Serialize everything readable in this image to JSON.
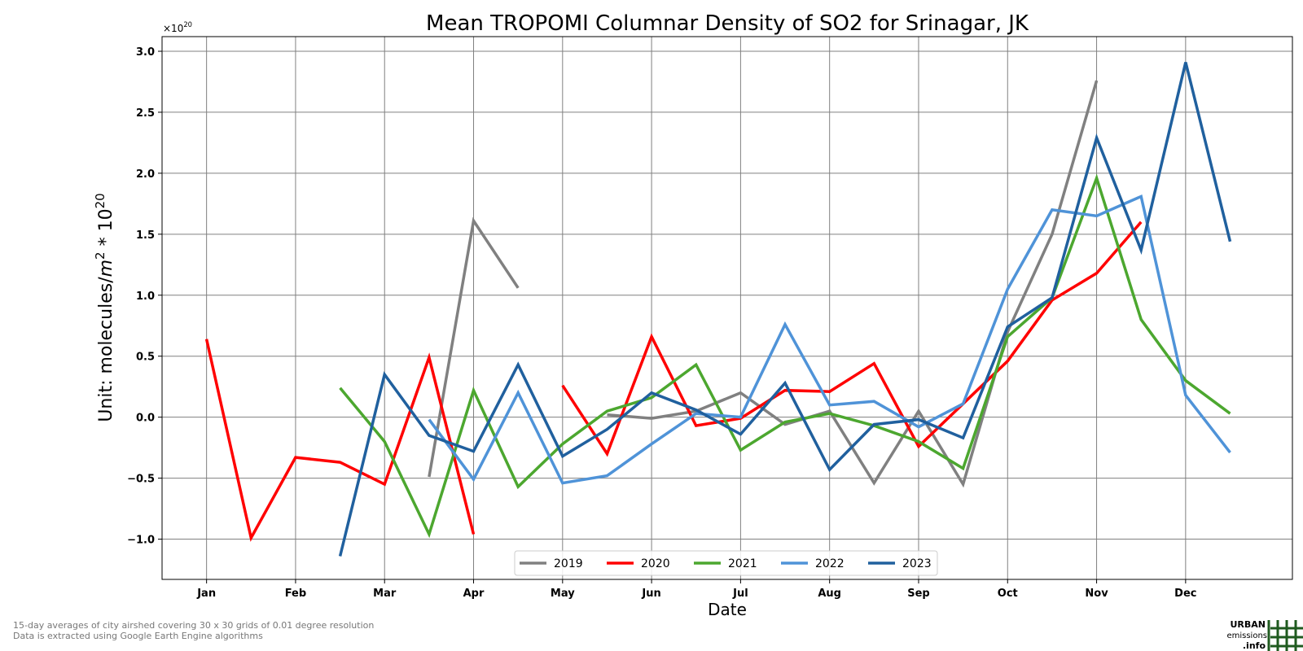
{
  "chart_data": {
    "type": "line",
    "title": "Mean TROPOMI Columnar Density of SO2 for Srinagar, JK",
    "xlabel": "Date",
    "ylabel": "Unit: molecules/m² * 10²⁰",
    "y_multiplier": "×10²⁰",
    "x_tick_labels": [
      "Jan",
      "Feb",
      "Mar",
      "Apr",
      "May",
      "Jun",
      "Jul",
      "Aug",
      "Sep",
      "Oct",
      "Nov",
      "Dec"
    ],
    "y_tick_labels": [
      "−1.0",
      "−0.5",
      "0.0",
      "0.5",
      "1.0",
      "1.5",
      "2.0",
      "2.5",
      "3.0"
    ],
    "y_ticks": [
      -1.0,
      -0.5,
      0.0,
      0.5,
      1.0,
      1.5,
      2.0,
      2.5,
      3.0
    ],
    "xlim": [
      0.5,
      13.2
    ],
    "ylim": [
      -1.33,
      3.12
    ],
    "grid": true,
    "legend_position": "lower-center",
    "x_note": "x positions are months of the year (1 = Jan, 1.5 = mid-Jan, ..., 12.5 = mid-Dec)",
    "series": [
      {
        "name": "2019",
        "color": "#808080",
        "segments": [
          [
            [
              3.5,
              -0.49
            ],
            [
              4.0,
              1.61
            ],
            [
              4.5,
              1.06
            ]
          ],
          [
            [
              5.5,
              0.02
            ],
            [
              6.0,
              -0.01
            ],
            [
              6.5,
              0.05
            ],
            [
              7.0,
              0.2
            ],
            [
              7.5,
              -0.06
            ],
            [
              8.0,
              0.05
            ],
            [
              8.5,
              -0.54
            ],
            [
              9.0,
              0.05
            ],
            [
              9.5,
              -0.55
            ],
            [
              10.0,
              0.7
            ],
            [
              10.5,
              1.5
            ],
            [
              11.0,
              2.76
            ]
          ]
        ]
      },
      {
        "name": "2020",
        "color": "#ff0000",
        "segments": [
          [
            [
              1.0,
              0.64
            ],
            [
              1.5,
              -0.99
            ],
            [
              2.0,
              -0.33
            ],
            [
              2.5,
              -0.37
            ],
            [
              3.0,
              -0.55
            ],
            [
              3.5,
              0.49
            ],
            [
              4.0,
              -0.96
            ]
          ],
          [
            [
              5.0,
              0.26
            ],
            [
              5.5,
              -0.3
            ],
            [
              6.0,
              0.66
            ],
            [
              6.5,
              -0.07
            ],
            [
              7.0,
              -0.01
            ],
            [
              7.5,
              0.22
            ],
            [
              8.0,
              0.21
            ],
            [
              8.5,
              0.44
            ],
            [
              9.0,
              -0.24
            ],
            [
              9.5,
              0.11
            ],
            [
              10.0,
              0.46
            ],
            [
              10.5,
              0.96
            ],
            [
              11.0,
              1.18
            ],
            [
              11.5,
              1.6
            ]
          ]
        ]
      },
      {
        "name": "2021",
        "color": "#4ca72f",
        "segments": [
          [
            [
              2.5,
              0.24
            ],
            [
              3.0,
              -0.2
            ],
            [
              3.5,
              -0.96
            ],
            [
              4.0,
              0.22
            ],
            [
              4.5,
              -0.57
            ],
            [
              5.0,
              -0.22
            ],
            [
              5.5,
              0.05
            ],
            [
              6.0,
              0.16
            ],
            [
              6.5,
              0.43
            ],
            [
              7.0,
              -0.27
            ],
            [
              7.5,
              -0.04
            ],
            [
              8.0,
              0.03
            ],
            [
              8.5,
              -0.07
            ],
            [
              9.0,
              -0.2
            ],
            [
              9.5,
              -0.42
            ],
            [
              10.0,
              0.66
            ],
            [
              10.5,
              0.98
            ],
            [
              11.0,
              1.96
            ],
            [
              11.5,
              0.8
            ],
            [
              12.0,
              0.3
            ],
            [
              12.5,
              0.03
            ]
          ]
        ]
      },
      {
        "name": "2022",
        "color": "#4f93d8",
        "segments": [
          [
            [
              3.5,
              -0.02
            ],
            [
              4.0,
              -0.51
            ],
            [
              4.5,
              0.2
            ],
            [
              5.0,
              -0.54
            ],
            [
              5.5,
              -0.48
            ],
            [
              6.0,
              -0.22
            ],
            [
              6.5,
              0.03
            ],
            [
              7.0,
              -0.0
            ],
            [
              7.5,
              0.76
            ],
            [
              8.0,
              0.1
            ],
            [
              8.5,
              0.13
            ],
            [
              9.0,
              -0.08
            ],
            [
              9.5,
              0.11
            ],
            [
              10.0,
              1.05
            ],
            [
              10.5,
              1.7
            ],
            [
              11.0,
              1.65
            ],
            [
              11.5,
              1.81
            ],
            [
              12.0,
              0.18
            ],
            [
              12.5,
              -0.29
            ]
          ]
        ]
      },
      {
        "name": "2023",
        "color": "#20609e",
        "segments": [
          [
            [
              2.5,
              -1.14
            ],
            [
              3.0,
              0.35
            ],
            [
              3.5,
              -0.15
            ],
            [
              4.0,
              -0.28
            ],
            [
              4.5,
              0.43
            ],
            [
              5.0,
              -0.32
            ],
            [
              5.5,
              -0.1
            ],
            [
              6.0,
              0.2
            ],
            [
              6.5,
              0.06
            ],
            [
              7.0,
              -0.14
            ],
            [
              7.5,
              0.28
            ],
            [
              8.0,
              -0.43
            ],
            [
              8.5,
              -0.06
            ],
            [
              9.0,
              -0.02
            ],
            [
              9.5,
              -0.17
            ],
            [
              10.0,
              0.74
            ],
            [
              10.5,
              0.98
            ],
            [
              11.0,
              2.29
            ],
            [
              11.5,
              1.37
            ],
            [
              12.0,
              2.91
            ],
            [
              12.5,
              1.44
            ]
          ]
        ]
      }
    ]
  },
  "footnotes": {
    "line1": "15-day averages of city airshed covering 30 x 30 grids of 0.01 degree resolution",
    "line2": "Data is extracted using Google Earth Engine algorithms"
  },
  "logo": {
    "line1": "URBAN",
    "line2": "emissions",
    "line3": ".info",
    "color": "#1f5a1f"
  }
}
